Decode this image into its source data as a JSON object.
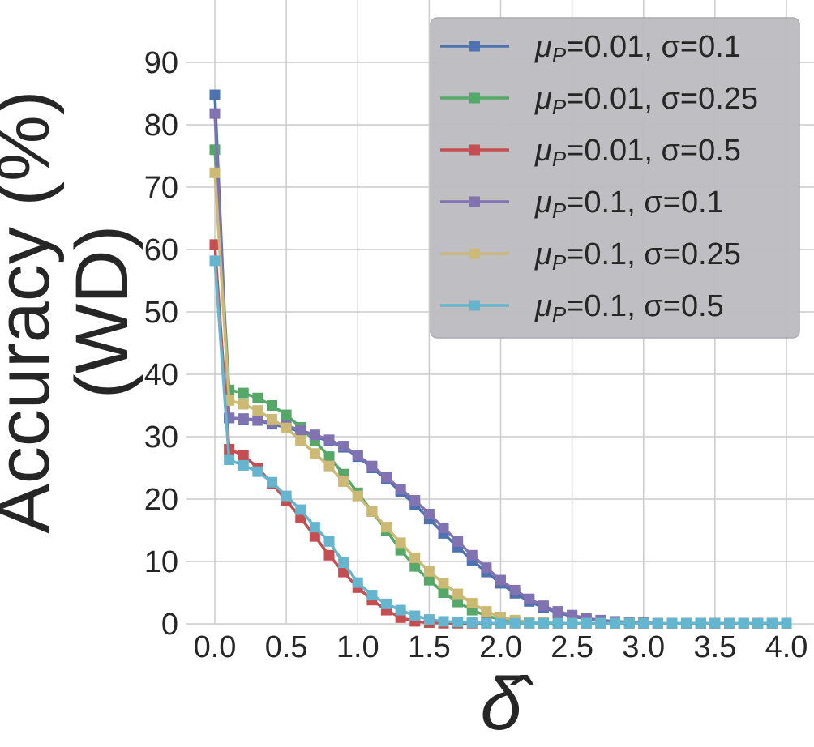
{
  "chart_data": {
    "type": "line",
    "xlabel": "δ̂",
    "ylabel_lines": [
      "Accuracy (%)",
      "(WD)"
    ],
    "xlim": [
      0.0,
      4.0
    ],
    "ylim": [
      0,
      100
    ],
    "xticks": [
      "0.0",
      "0.5",
      "1.0",
      "1.5",
      "2.0",
      "2.5",
      "3.0",
      "3.5",
      "4.0"
    ],
    "yticks": [
      "0",
      "10",
      "20",
      "30",
      "40",
      "50",
      "60",
      "70",
      "80",
      "90"
    ],
    "grid": true,
    "legend_position": "top-right",
    "x": [
      0.0,
      0.1,
      0.2,
      0.3,
      0.4,
      0.5,
      0.6,
      0.7,
      0.8,
      0.9,
      1.0,
      1.1,
      1.2,
      1.3,
      1.4,
      1.5,
      1.6,
      1.7,
      1.8,
      1.9,
      2.0,
      2.1,
      2.2,
      2.3,
      2.4,
      2.5,
      2.6,
      2.7,
      2.8,
      2.9,
      3.0,
      3.1,
      3.2,
      3.3,
      3.4,
      3.5,
      3.6,
      3.7,
      3.8,
      3.9,
      4.0
    ],
    "series": [
      {
        "name": "μP=0.01, σ=0.1",
        "legend_main": "μ",
        "legend_sub": "P",
        "legend_rest": "=0.01, σ=0.1",
        "color": "#4c72b0",
        "values": [
          84.8,
          33.0,
          32.8,
          32.6,
          32.0,
          31.5,
          30.8,
          30.0,
          29.3,
          28.3,
          26.8,
          25.0,
          23.2,
          21.2,
          19.1,
          16.8,
          14.5,
          12.3,
          10.2,
          8.3,
          6.5,
          4.9,
          3.6,
          2.6,
          1.8,
          1.2,
          0.8,
          0.5,
          0.3,
          0.2,
          0.1,
          0.1,
          0.1,
          0.1,
          0.1,
          0.1,
          0.1,
          0.1,
          0.1,
          0.1,
          0.1
        ]
      },
      {
        "name": "μP=0.01, σ=0.25",
        "legend_main": "μ",
        "legend_sub": "P",
        "legend_rest": "=0.01, σ=0.25",
        "color": "#55a868",
        "values": [
          76.0,
          37.5,
          37.0,
          36.2,
          35.0,
          33.5,
          31.5,
          29.3,
          26.8,
          24.0,
          21.0,
          18.0,
          15.0,
          11.8,
          9.2,
          7.0,
          5.0,
          3.5,
          2.2,
          1.3,
          0.7,
          0.4,
          0.2,
          0.1,
          0.1,
          0.1,
          0.1,
          0.1,
          0.1,
          0.1,
          0.1,
          0.1,
          0.1,
          0.1,
          0.1,
          0.1,
          0.1,
          0.1,
          0.1,
          0.1,
          0.1
        ]
      },
      {
        "name": "μP=0.01, σ=0.5",
        "legend_main": "μ",
        "legend_sub": "P",
        "legend_rest": "=0.01, σ=0.5",
        "color": "#c44e52",
        "values": [
          60.8,
          28.0,
          27.0,
          25.0,
          22.5,
          19.8,
          17.0,
          14.0,
          11.0,
          8.3,
          5.8,
          3.8,
          2.2,
          1.0,
          0.4,
          0.2,
          0.1,
          0.1,
          0.1,
          0.1,
          0.1,
          0.1,
          0.1,
          0.1,
          0.1,
          0.1,
          0.1,
          0.1,
          0.1,
          0.1,
          0.1,
          0.1,
          0.1,
          0.1,
          0.1,
          0.1,
          0.1,
          0.1,
          0.1,
          0.1,
          0.1
        ]
      },
      {
        "name": "μP=0.1, σ=0.1",
        "legend_main": "μ",
        "legend_sub": "P",
        "legend_rest": "=0.1, σ=0.1",
        "color": "#8172b2",
        "values": [
          81.8,
          33.0,
          32.9,
          32.7,
          32.2,
          31.8,
          31.0,
          30.3,
          29.5,
          28.5,
          27.0,
          25.3,
          23.5,
          21.6,
          19.8,
          17.6,
          15.4,
          13.2,
          11.0,
          9.0,
          7.0,
          5.4,
          4.0,
          2.9,
          2.0,
          1.4,
          0.9,
          0.6,
          0.4,
          0.3,
          0.2,
          0.1,
          0.1,
          0.1,
          0.1,
          0.1,
          0.1,
          0.1,
          0.1,
          0.1,
          0.1
        ]
      },
      {
        "name": "μP=0.1, σ=0.25",
        "legend_main": "μ",
        "legend_sub": "P",
        "legend_rest": "=0.1, σ=0.25",
        "color": "#ccb974",
        "values": [
          72.3,
          35.8,
          35.2,
          34.2,
          32.8,
          31.4,
          29.4,
          27.3,
          25.3,
          22.8,
          20.5,
          18.0,
          15.5,
          13.0,
          10.6,
          8.4,
          6.5,
          4.8,
          3.3,
          2.0,
          1.1,
          0.6,
          0.3,
          0.2,
          0.1,
          0.1,
          0.1,
          0.1,
          0.1,
          0.1,
          0.1,
          0.1,
          0.1,
          0.1,
          0.1,
          0.1,
          0.1,
          0.1,
          0.1,
          0.1,
          0.1
        ]
      },
      {
        "name": "μP=0.1, σ=0.5",
        "legend_main": "μ",
        "legend_sub": "P",
        "legend_rest": "=0.1, σ=0.5",
        "color": "#64b5cd",
        "values": [
          58.2,
          26.3,
          25.4,
          24.4,
          22.7,
          20.5,
          18.3,
          15.5,
          13.2,
          9.8,
          6.6,
          4.6,
          3.2,
          2.2,
          1.3,
          0.7,
          0.4,
          0.3,
          0.2,
          0.1,
          0.1,
          0.1,
          0.1,
          0.1,
          0.1,
          0.1,
          0.1,
          0.1,
          0.1,
          0.1,
          0.1,
          0.1,
          0.1,
          0.1,
          0.1,
          0.1,
          0.1,
          0.1,
          0.1,
          0.1,
          0.1
        ]
      }
    ]
  }
}
